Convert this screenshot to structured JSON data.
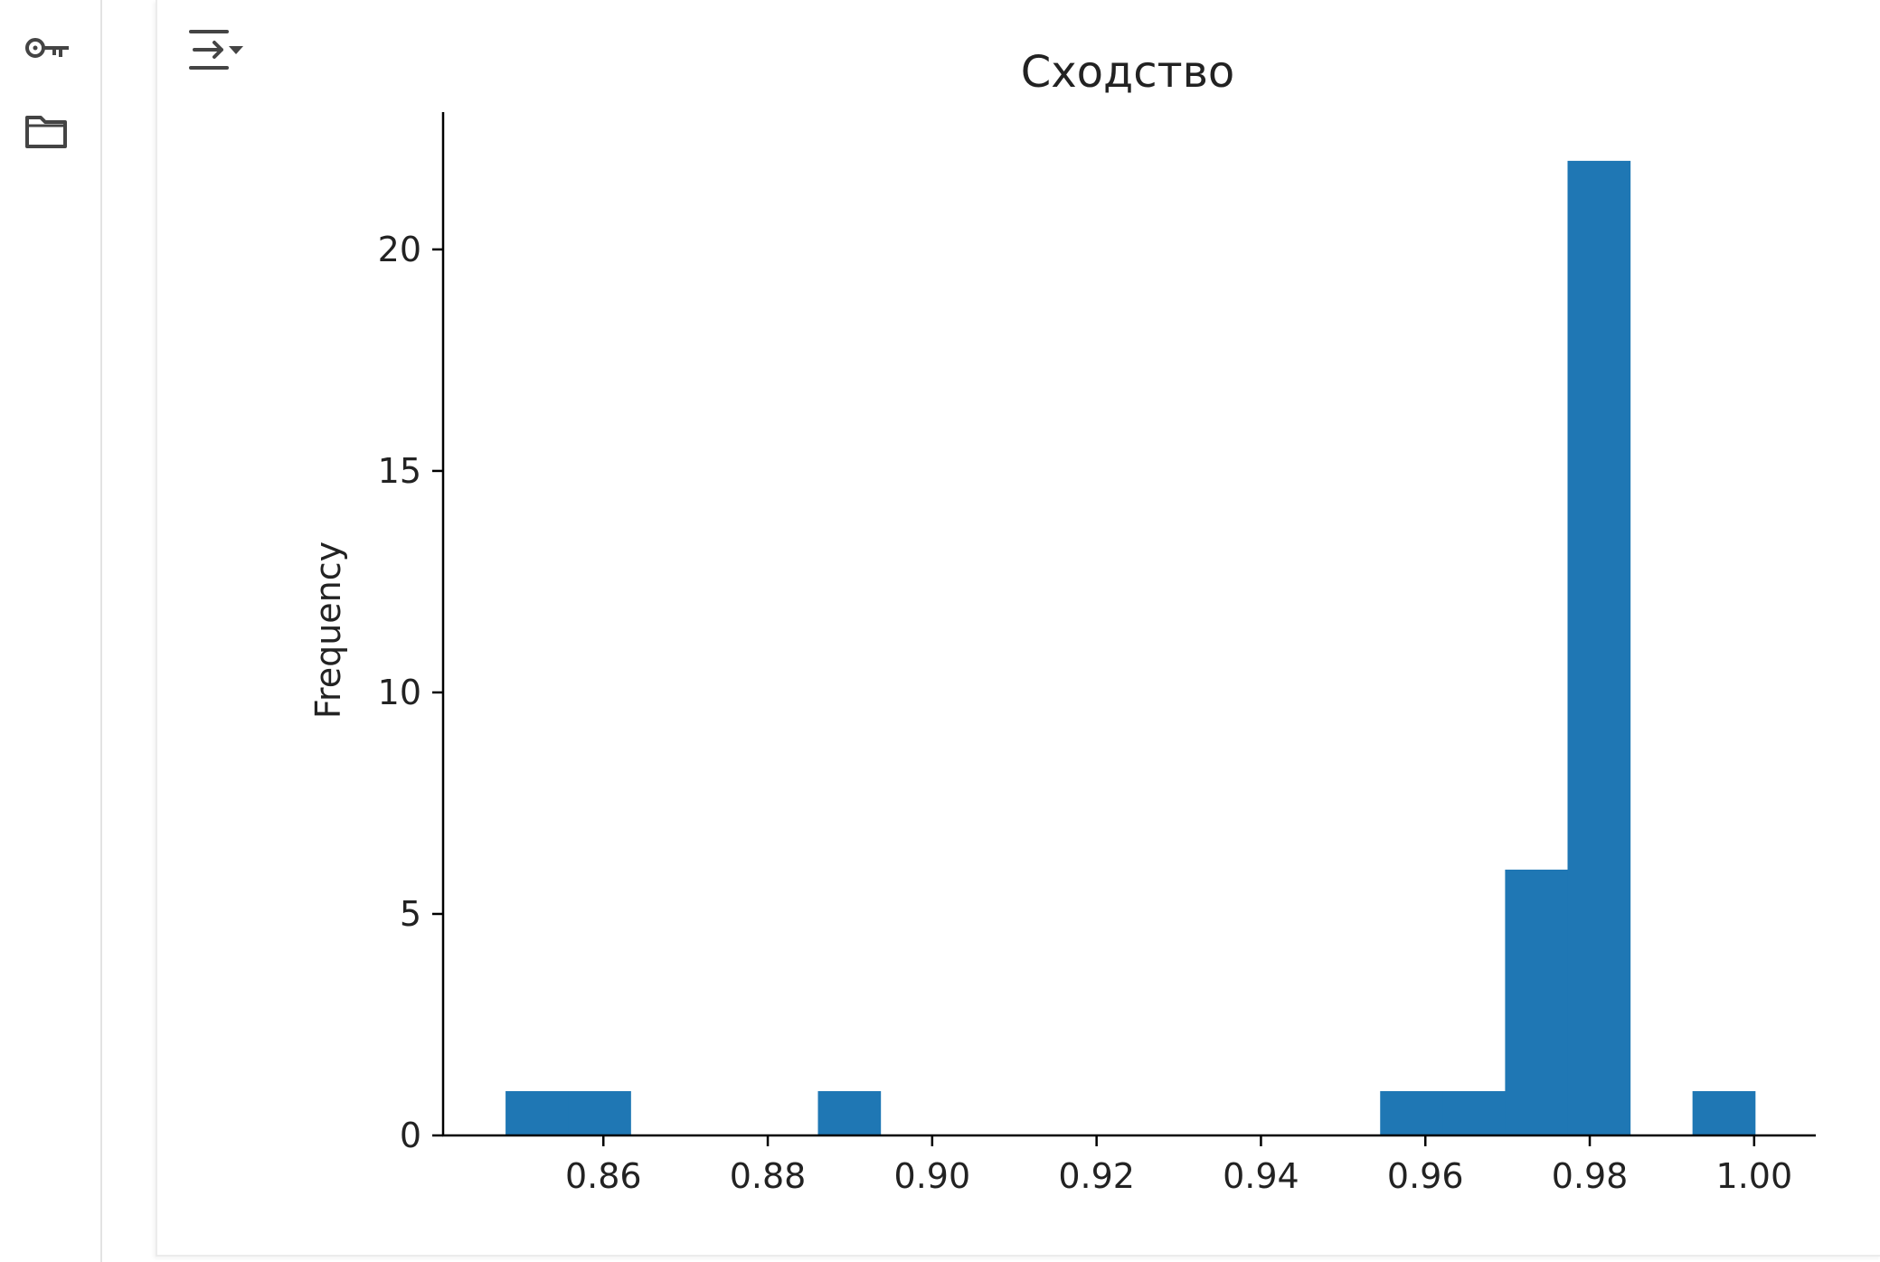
{
  "sidebar": {
    "items": [
      {
        "icon": "key-icon",
        "label": ""
      },
      {
        "icon": "folder-icon",
        "label": ""
      }
    ]
  },
  "cell": {
    "toolbar_icon": "output-toggle-icon"
  },
  "colors": {
    "bar": "#1f77b4",
    "axis": "#000000",
    "sidebar_border": "#e3e3e3",
    "icon": "#444444"
  },
  "chart_data": {
    "type": "bar",
    "title": "Сходство",
    "xlabel": "",
    "ylabel": "Frequency",
    "xlim": [
      0.8405,
      1.0075
    ],
    "ylim": [
      0,
      23.1
    ],
    "grid": false,
    "x_ticks": [
      0.86,
      0.88,
      0.9,
      0.92,
      0.94,
      0.96,
      0.98,
      1.0
    ],
    "x_tick_labels": [
      "0.86",
      "0.88",
      "0.90",
      "0.92",
      "0.94",
      "0.96",
      "0.98",
      "1.00"
    ],
    "y_ticks": [
      0,
      5,
      10,
      15,
      20
    ],
    "y_tick_labels": [
      "0",
      "5",
      "10",
      "15",
      "20"
    ],
    "bin_start": 0.8481,
    "bin_width": 0.0076,
    "counts": [
      1,
      1,
      0,
      0,
      0,
      1,
      0,
      0,
      0,
      0,
      0,
      0,
      0,
      0,
      1,
      1,
      6,
      22,
      0,
      1
    ]
  }
}
